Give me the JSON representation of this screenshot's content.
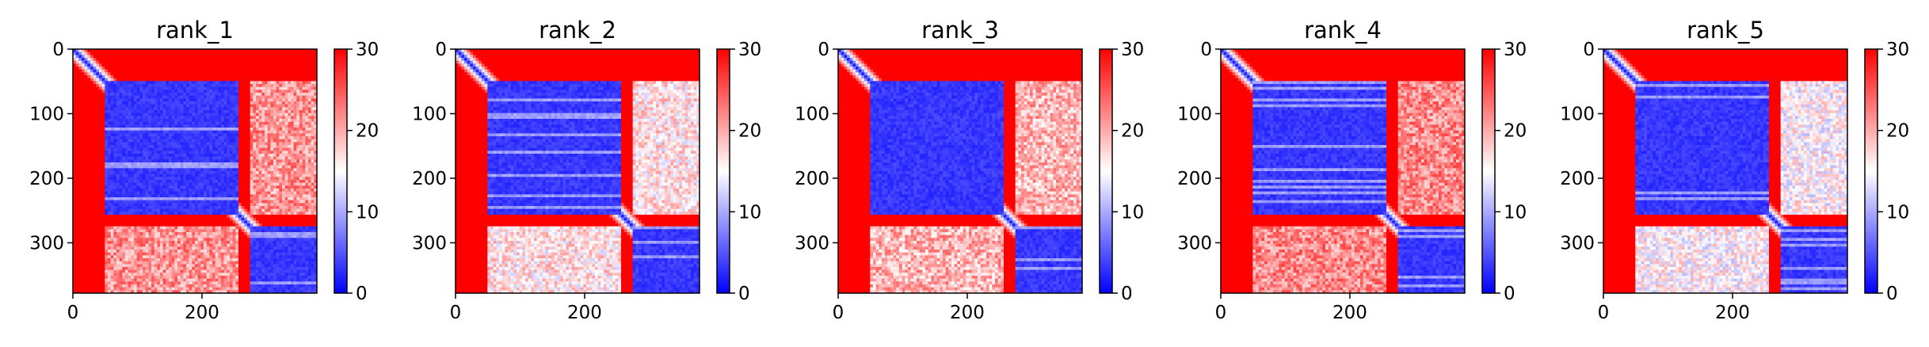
{
  "chart_data": [
    {
      "type": "heatmap",
      "title": "rank_1",
      "n": 378,
      "domains": [
        [
          0,
          48
        ],
        [
          48,
          256
        ],
        [
          256,
          276
        ],
        [
          276,
          378
        ]
      ],
      "diagonal_band": [
        [
          0,
          48
        ],
        [
          256,
          276
        ]
      ],
      "cross_intensity": 0.86,
      "colorbar": {
        "min": 0,
        "max": 30,
        "ticks": [
          0,
          10,
          20,
          30
        ],
        "colormap": "bwr"
      },
      "xticks": [
        0,
        200
      ],
      "yticks": [
        0,
        100,
        200,
        300
      ],
      "xlim": [
        0,
        378
      ],
      "ylim": [
        378,
        0
      ]
    },
    {
      "type": "heatmap",
      "title": "rank_2",
      "n": 378,
      "domains": [
        [
          0,
          48
        ],
        [
          48,
          256
        ],
        [
          256,
          276
        ],
        [
          276,
          378
        ]
      ],
      "diagonal_band": [
        [
          0,
          48
        ],
        [
          256,
          276
        ]
      ],
      "cross_intensity": 0.7,
      "colorbar": {
        "min": 0,
        "max": 30,
        "ticks": [
          0,
          10,
          20,
          30
        ],
        "colormap": "bwr"
      },
      "xticks": [
        0,
        200
      ],
      "yticks": [
        0,
        100,
        200,
        300
      ],
      "xlim": [
        0,
        378
      ],
      "ylim": [
        378,
        0
      ]
    },
    {
      "type": "heatmap",
      "title": "rank_3",
      "n": 378,
      "domains": [
        [
          0,
          48
        ],
        [
          48,
          256
        ],
        [
          256,
          276
        ],
        [
          276,
          378
        ]
      ],
      "diagonal_band": [
        [
          0,
          48
        ],
        [
          256,
          276
        ]
      ],
      "cross_intensity": 0.8,
      "colorbar": {
        "min": 0,
        "max": 30,
        "ticks": [
          0,
          10,
          20,
          30
        ],
        "colormap": "bwr"
      },
      "xticks": [
        0,
        200
      ],
      "yticks": [
        0,
        100,
        200,
        300
      ],
      "xlim": [
        0,
        378
      ],
      "ylim": [
        378,
        0
      ]
    },
    {
      "type": "heatmap",
      "title": "rank_4",
      "n": 378,
      "domains": [
        [
          0,
          48
        ],
        [
          48,
          256
        ],
        [
          256,
          276
        ],
        [
          276,
          378
        ]
      ],
      "diagonal_band": [
        [
          0,
          48
        ],
        [
          256,
          276
        ]
      ],
      "cross_intensity": 0.88,
      "colorbar": {
        "min": 0,
        "max": 30,
        "ticks": [
          0,
          10,
          20,
          30
        ],
        "colormap": "bwr"
      },
      "xticks": [
        0,
        200
      ],
      "yticks": [
        0,
        100,
        200,
        300
      ],
      "xlim": [
        0,
        378
      ],
      "ylim": [
        378,
        0
      ]
    },
    {
      "type": "heatmap",
      "title": "rank_5",
      "n": 378,
      "domains": [
        [
          0,
          48
        ],
        [
          48,
          256
        ],
        [
          256,
          276
        ],
        [
          276,
          378
        ]
      ],
      "diagonal_band": [
        [
          0,
          48
        ],
        [
          256,
          276
        ]
      ],
      "cross_intensity": 0.66,
      "colorbar": {
        "min": 0,
        "max": 30,
        "ticks": [
          0,
          10,
          20,
          30
        ],
        "colormap": "bwr"
      },
      "xticks": [
        0,
        200
      ],
      "yticks": [
        0,
        100,
        200,
        300
      ],
      "xlim": [
        0,
        378
      ],
      "ylim": [
        378,
        0
      ]
    }
  ]
}
